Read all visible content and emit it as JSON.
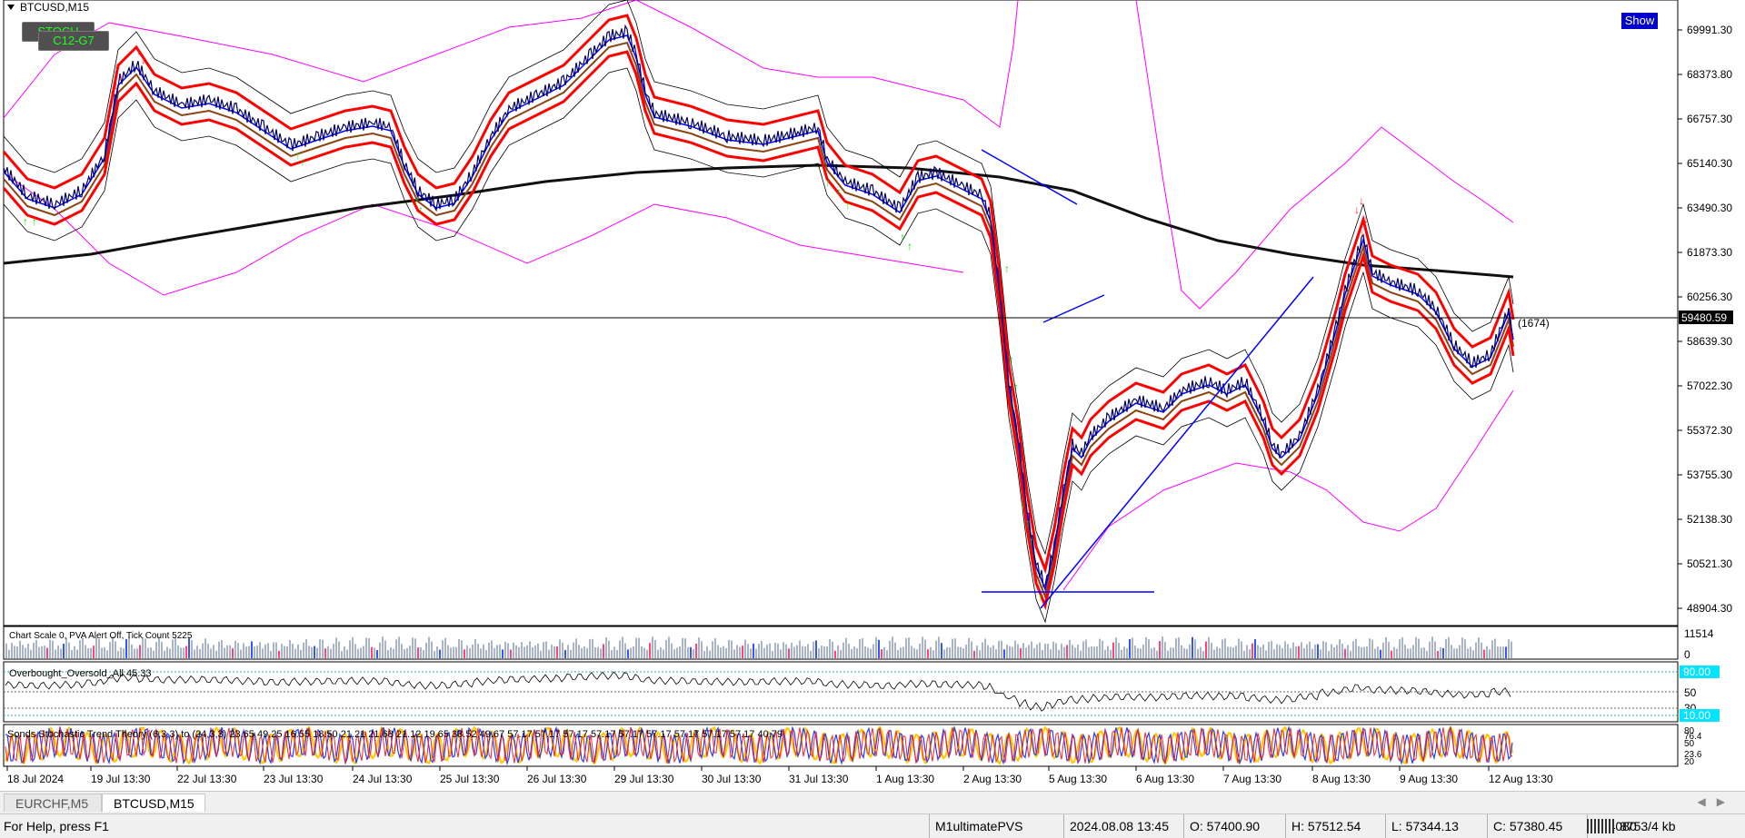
{
  "chart": {
    "symbol_title": "BTCUSD,M15",
    "price_labels": [
      "69991.30",
      "68373.80",
      "66757.30",
      "65140.30",
      "63490.30",
      "61873.30",
      "60256.30",
      "58639.30",
      "57022.30",
      "55372.30",
      "53755.30",
      "52138.30",
      "50521.30",
      "48904.30"
    ],
    "current_price": "59480.59",
    "tick_count_label": "(1674)",
    "time_labels": [
      "18 Jul 2024",
      "19 Jul 13:30",
      "22 Jul 13:30",
      "23 Jul 13:30",
      "24 Jul 13:30",
      "25 Jul 13:30",
      "26 Jul 13:30",
      "29 Jul 13:30",
      "30 Jul 13:30",
      "31 Jul 13:30",
      "1 Aug 13:30",
      "2 Aug 13:30",
      "5 Aug 13:30",
      "6 Aug 13:30",
      "7 Aug 13:30",
      "8 Aug 13:30",
      "9 Aug 13:30",
      "12 Aug 13:30"
    ],
    "colors": {
      "price": "#000066",
      "ma_red": "#ff0000",
      "ma_blue": "#0000ff",
      "ma_brown": "#8b4513",
      "ma_black": "#111111",
      "envelope": "#ff00ff",
      "bands": "#000000",
      "arrow_green": "#00dd00",
      "arrow_red": "#ff2222"
    }
  },
  "buttons": {
    "stoch": "STOCH",
    "c12": "C12-G7",
    "show": "Show"
  },
  "volume_panel": {
    "header": "Chart Scale  0,   PVA Alert Off,   Tick Count  5225",
    "scale_top": "11514",
    "scale_bottom": "0"
  },
  "osc_panel": {
    "title": "Overbought_Oversold_All 45.33",
    "level_high": "90.00",
    "level_50": "50",
    "level_30": "30",
    "level_low": "10.00"
  },
  "stoch_panel": {
    "title": "Sonds Stochastic Trend Theory (6,3,3) to (24,3,3) 23.65 49.25 16.55 18.50 21.21 21.68 21.12 19.65 38.52 49.67 57.17 57.17 57.17 57.17 57.17 57.17 57.17 57.17 57.17 40.79",
    "scale": [
      "80",
      "76.4",
      "50",
      "23.6",
      "20"
    ]
  },
  "tabs": [
    {
      "label": "EURCHF,M5",
      "active": false
    },
    {
      "label": "BTCUSD,M15",
      "active": true
    }
  ],
  "status": {
    "help": "For Help, press F1",
    "profile": "M1ultimatePVS",
    "datetime": "2024.08.08 13:45",
    "open": "O: 57400.90",
    "high": "H: 57512.54",
    "low": "L: 57344.13",
    "close": "C: 57380.45",
    "volume": "V: 4080",
    "traffic": "8753/4 kb"
  }
}
